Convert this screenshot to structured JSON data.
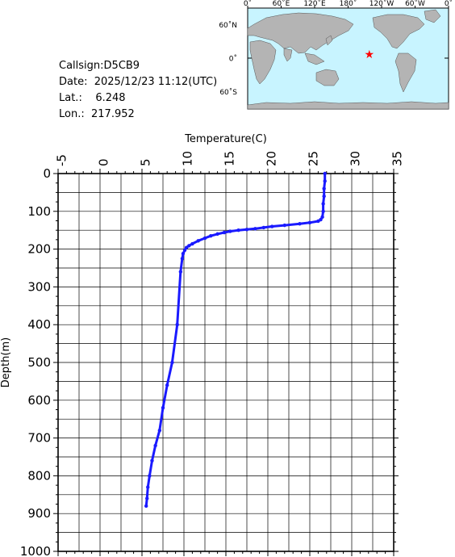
{
  "info": {
    "callsign_label": "Callsign:",
    "callsign": "D5CB9",
    "date_label": "Date:",
    "date": "2025/12/23 11:12(UTC)",
    "lat_label": "Lat.:",
    "lat": "6.248",
    "lon_label": "Lon.:",
    "lon": "217.952"
  },
  "map": {
    "lon_labels": [
      "0˚",
      "60˚E",
      "120˚E",
      "180˚",
      "120˚W",
      "60˚W",
      "0˚"
    ],
    "lat_labels": [
      "60˚N",
      "0˚",
      "60˚S"
    ],
    "marker_lat": 6.248,
    "marker_lon": 217.952,
    "ocean_color": "#c8f4ff",
    "land_color": "#b4b4b4",
    "marker_color": "#ff0000"
  },
  "chart_data": {
    "type": "line",
    "title": "",
    "xlabel": "Temperature(C)",
    "ylabel": "Depth(m)",
    "xlim": [
      -5,
      35
    ],
    "ylim": [
      0,
      1000
    ],
    "y_inverted": true,
    "x_axis_position": "top",
    "x_ticks": [
      "-5",
      "0",
      "5",
      "10",
      "15",
      "20",
      "25",
      "30",
      "35"
    ],
    "y_ticks": [
      "0",
      "100",
      "200",
      "300",
      "400",
      "500",
      "600",
      "700",
      "800",
      "900",
      "1000"
    ],
    "grid": true,
    "line_color": "#1a1aff",
    "series": [
      {
        "x": [
          26.8,
          26.8,
          26.7,
          26.7,
          26.6,
          26.6,
          26.5,
          26.3,
          26.0,
          25.0,
          23.8,
          22.0,
          20.5,
          19.5,
          18.5,
          17.5,
          16.5,
          15.5,
          14.8,
          14.0,
          13.2,
          12.5,
          11.7,
          11.0,
          10.6,
          10.3,
          10.1,
          9.9,
          9.8,
          9.6,
          9.2,
          8.6,
          8.0,
          7.5,
          7.1,
          6.6,
          6.2,
          5.9,
          5.7,
          5.6,
          5.5
        ],
        "y": [
          0,
          20,
          40,
          60,
          80,
          100,
          115,
          122,
          126,
          130,
          133,
          137,
          140,
          143,
          146,
          148,
          150,
          153,
          156,
          160,
          165,
          171,
          178,
          186,
          191,
          196,
          203,
          212,
          225,
          260,
          400,
          500,
          560,
          620,
          680,
          720,
          760,
          800,
          830,
          860,
          880
        ]
      }
    ]
  }
}
